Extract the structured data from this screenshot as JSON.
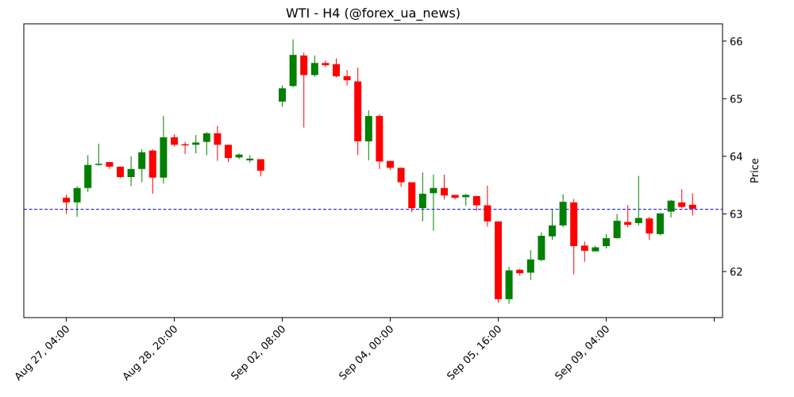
{
  "chart_data": {
    "type": "candlestick",
    "title": "WTI - H4 (@forex_ua_news)",
    "ylabel": "Price",
    "xlabel": "",
    "ylim": [
      61.2,
      66.3
    ],
    "y_ticks": [
      62,
      63,
      64,
      65,
      66
    ],
    "x_ticks": [
      {
        "index": 0,
        "label": "Aug 27, 04:00"
      },
      {
        "index": 10,
        "label": "Aug 28, 20:00"
      },
      {
        "index": 20,
        "label": "Sep 02, 08:00"
      },
      {
        "index": 30,
        "label": "Sep 04, 00:00"
      },
      {
        "index": 40,
        "label": "Sep 05, 16:00"
      },
      {
        "index": 50,
        "label": "Sep 09, 04:00"
      },
      {
        "index": 60,
        "label": ""
      }
    ],
    "grid": false,
    "colors": {
      "up": "#008000",
      "down": "#ff0000",
      "reference_line": "#0000ff"
    },
    "reference_line": {
      "value": 63.08,
      "style": "dashed"
    },
    "series": [
      {
        "candles": [
          {
            "o": 63.28,
            "h": 63.33,
            "l": 63.0,
            "c": 63.2
          },
          {
            "o": 63.2,
            "h": 63.48,
            "l": 62.95,
            "c": 63.45
          },
          {
            "o": 63.45,
            "h": 64.02,
            "l": 63.38,
            "c": 63.85
          },
          {
            "o": 63.85,
            "h": 64.22,
            "l": 63.84,
            "c": 63.87
          },
          {
            "o": 63.9,
            "h": 63.9,
            "l": 63.78,
            "c": 63.82
          },
          {
            "o": 63.82,
            "h": 63.82,
            "l": 63.62,
            "c": 63.64
          },
          {
            "o": 63.64,
            "h": 64.0,
            "l": 63.48,
            "c": 63.78
          },
          {
            "o": 63.78,
            "h": 64.12,
            "l": 63.55,
            "c": 64.07
          },
          {
            "o": 64.1,
            "h": 64.12,
            "l": 63.35,
            "c": 63.63
          },
          {
            "o": 63.63,
            "h": 64.7,
            "l": 63.53,
            "c": 64.33
          },
          {
            "o": 64.33,
            "h": 64.38,
            "l": 64.17,
            "c": 64.2
          },
          {
            "o": 64.21,
            "h": 64.25,
            "l": 64.04,
            "c": 64.2
          },
          {
            "o": 64.2,
            "h": 64.37,
            "l": 64.05,
            "c": 64.24
          },
          {
            "o": 64.25,
            "h": 64.42,
            "l": 64.02,
            "c": 64.4
          },
          {
            "o": 64.4,
            "h": 64.53,
            "l": 63.92,
            "c": 64.2
          },
          {
            "o": 64.2,
            "h": 64.2,
            "l": 63.9,
            "c": 63.97
          },
          {
            "o": 63.98,
            "h": 64.05,
            "l": 63.95,
            "c": 64.03
          },
          {
            "o": 63.93,
            "h": 64.02,
            "l": 63.89,
            "c": 63.96
          },
          {
            "o": 63.95,
            "h": 63.95,
            "l": 63.65,
            "c": 63.75
          },
          null,
          {
            "o": 64.95,
            "h": 65.23,
            "l": 64.86,
            "c": 65.18
          },
          {
            "o": 65.22,
            "h": 66.03,
            "l": 65.2,
            "c": 65.76
          },
          {
            "o": 65.75,
            "h": 65.8,
            "l": 64.5,
            "c": 65.41
          },
          {
            "o": 65.41,
            "h": 65.75,
            "l": 65.38,
            "c": 65.62
          },
          {
            "o": 65.62,
            "h": 65.66,
            "l": 65.55,
            "c": 65.58
          },
          {
            "o": 65.6,
            "h": 65.7,
            "l": 65.37,
            "c": 65.39
          },
          {
            "o": 65.39,
            "h": 65.5,
            "l": 65.23,
            "c": 65.32
          },
          {
            "o": 65.3,
            "h": 65.54,
            "l": 64.02,
            "c": 64.26
          },
          {
            "o": 64.26,
            "h": 64.8,
            "l": 63.93,
            "c": 64.7
          },
          {
            "o": 64.7,
            "h": 64.73,
            "l": 63.78,
            "c": 63.91
          },
          {
            "o": 63.92,
            "h": 63.92,
            "l": 63.76,
            "c": 63.8
          },
          {
            "o": 63.8,
            "h": 63.8,
            "l": 63.47,
            "c": 63.55
          },
          {
            "o": 63.55,
            "h": 63.55,
            "l": 63.03,
            "c": 63.1
          },
          {
            "o": 63.1,
            "h": 63.72,
            "l": 62.87,
            "c": 63.35
          },
          {
            "o": 63.36,
            "h": 63.68,
            "l": 62.71,
            "c": 63.45
          },
          {
            "o": 63.45,
            "h": 63.68,
            "l": 63.25,
            "c": 63.32
          },
          {
            "o": 63.33,
            "h": 63.33,
            "l": 63.25,
            "c": 63.28
          },
          {
            "o": 63.29,
            "h": 63.35,
            "l": 63.14,
            "c": 63.33
          },
          {
            "o": 63.31,
            "h": 63.31,
            "l": 63.05,
            "c": 63.15
          },
          {
            "o": 63.15,
            "h": 63.49,
            "l": 62.78,
            "c": 62.87
          },
          {
            "o": 62.87,
            "h": 62.87,
            "l": 61.46,
            "c": 61.52
          },
          {
            "o": 61.52,
            "h": 62.08,
            "l": 61.44,
            "c": 62.02
          },
          {
            "o": 62.03,
            "h": 62.05,
            "l": 61.93,
            "c": 61.97
          },
          {
            "o": 61.98,
            "h": 62.37,
            "l": 61.85,
            "c": 62.21
          },
          {
            "o": 62.2,
            "h": 62.68,
            "l": 62.18,
            "c": 62.62
          },
          {
            "o": 62.61,
            "h": 63.07,
            "l": 62.55,
            "c": 62.8
          },
          {
            "o": 62.8,
            "h": 63.34,
            "l": 62.77,
            "c": 63.21
          },
          {
            "o": 63.2,
            "h": 63.26,
            "l": 61.95,
            "c": 62.44
          },
          {
            "o": 62.45,
            "h": 62.52,
            "l": 62.17,
            "c": 62.36
          },
          {
            "o": 62.35,
            "h": 62.45,
            "l": 62.35,
            "c": 62.42
          },
          {
            "o": 62.44,
            "h": 62.65,
            "l": 62.4,
            "c": 62.58
          },
          {
            "o": 62.58,
            "h": 63.0,
            "l": 62.57,
            "c": 62.88
          },
          {
            "o": 62.86,
            "h": 63.15,
            "l": 62.77,
            "c": 62.81
          },
          {
            "o": 62.84,
            "h": 63.66,
            "l": 62.8,
            "c": 62.93
          },
          {
            "o": 62.92,
            "h": 62.95,
            "l": 62.55,
            "c": 62.66
          },
          {
            "o": 62.65,
            "h": 63.01,
            "l": 62.63,
            "c": 63.01
          },
          {
            "o": 63.04,
            "h": 63.24,
            "l": 62.94,
            "c": 63.23
          },
          {
            "o": 63.2,
            "h": 63.43,
            "l": 63.1,
            "c": 63.12
          },
          {
            "o": 63.16,
            "h": 63.36,
            "l": 62.97,
            "c": 63.09
          }
        ]
      }
    ]
  }
}
